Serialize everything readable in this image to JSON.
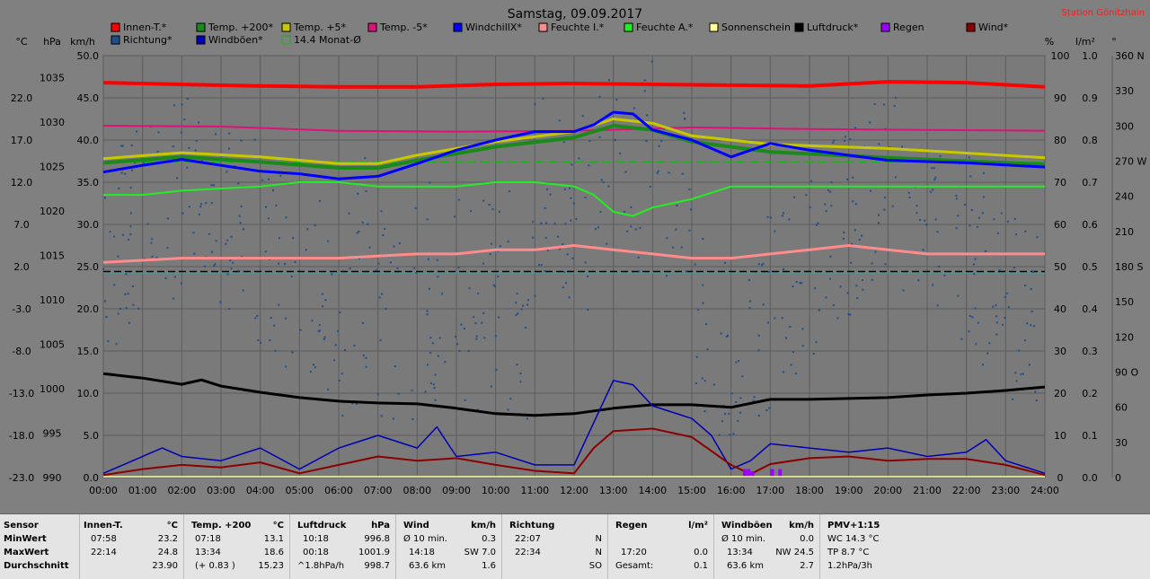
{
  "title": "Samstag, 09.09.2017",
  "station": "Station Gönitzhain",
  "colors": {
    "innen": "#ff0000",
    "temp200": "#1a8a1a",
    "temp5": "#c8c800",
    "tempm5": "#e0107a",
    "windchill": "#0000ff",
    "feuchteI": "#ff8c8c",
    "feuchteA": "#22ee22",
    "sonnenschein": "#ffff99",
    "luftdruck": "#000000",
    "regen": "#9b00ff",
    "wind": "#8b0000",
    "richtung": "#1f4e8c",
    "windboeen": "#0000b4",
    "monat": "#22aa22"
  },
  "legend": [
    {
      "label": "Innen-T.*",
      "color": "#ff0000"
    },
    {
      "label": "Temp. +200*",
      "color": "#1a8a1a"
    },
    {
      "label": "Temp. +5*",
      "color": "#c8c800"
    },
    {
      "label": "Temp. -5*",
      "color": "#e0107a"
    },
    {
      "label": "WindchillX*",
      "color": "#0000ff"
    },
    {
      "label": "Feuchte I.*",
      "color": "#ff8c8c"
    },
    {
      "label": "Feuchte A.*",
      "color": "#22ee22"
    },
    {
      "label": "Sonnenschein",
      "color": "#ffff99"
    },
    {
      "label": "Luftdruck*",
      "color": "#000000"
    },
    {
      "label": "Regen",
      "color": "#9b00ff"
    },
    {
      "label": "Wind*",
      "color": "#8b0000"
    },
    {
      "label": "Richtung*",
      "color": "#1f4e8c"
    },
    {
      "label": "Windböen*",
      "color": "#0000b4"
    },
    {
      "label": "14.4 Monat-Ø",
      "color": "#22aa22",
      "outline": true
    }
  ],
  "axis_units": {
    "c": "°C",
    "hpa": "hPa",
    "kmh": "km/h",
    "pct": "%",
    "lm2": "l/m²",
    "deg": "°"
  },
  "chart_data": {
    "type": "line",
    "title": "Samstag, 09.09.2017",
    "x_labels": [
      "00:00",
      "01:00",
      "02:00",
      "03:00",
      "04:00",
      "05:00",
      "06:00",
      "07:00",
      "08:00",
      "09:00",
      "10:00",
      "11:00",
      "12:00",
      "13:00",
      "14:00",
      "15:00",
      "16:00",
      "17:00",
      "18:00",
      "19:00",
      "20:00",
      "21:00",
      "22:00",
      "23:00",
      "24:00"
    ],
    "axes": {
      "temp_c": {
        "ticks": [
          "22.0",
          "17.0",
          "12.0",
          "7.0",
          "2.0",
          "-3.0",
          "-8.0",
          "-13.0",
          "-18.0",
          "-23.0"
        ],
        "ylim": [
          -23,
          27
        ]
      },
      "pressure_hpa": {
        "ticks": [
          "1035",
          "1030",
          "1025",
          "1020",
          "1015",
          "1010",
          "1005",
          "1000",
          "995",
          "990"
        ],
        "ylim": [
          990,
          1037.5
        ]
      },
      "wind_kmh": {
        "ticks": [
          "50.0",
          "45.0",
          "40.0",
          "35.0",
          "30.0",
          "25.0",
          "20.0",
          "15.0",
          "10.0",
          "5.0",
          "0.0"
        ],
        "ylim": [
          0,
          50
        ]
      },
      "humidity_pct": {
        "ticks": [
          "100",
          "90",
          "80",
          "70",
          "60",
          "50",
          "40",
          "30",
          "20",
          "10",
          "0"
        ],
        "ylim": [
          0,
          100
        ]
      },
      "rain_lm2": {
        "ticks": [
          "1.0",
          "0.9",
          "0.8",
          "0.7",
          "0.6",
          "0.5",
          "0.4",
          "0.3",
          "0.2",
          "0.1",
          "0.0"
        ],
        "ylim": [
          0,
          1
        ]
      },
      "direction_deg": {
        "ticks": [
          "360 N",
          "330",
          "300",
          "270 W",
          "240",
          "210",
          "180 S",
          "150",
          "120",
          "90 O",
          "60",
          "30",
          "0"
        ],
        "ylim": [
          0,
          360
        ]
      }
    },
    "series": [
      {
        "name": "Innen-T.*",
        "axis": "temp_c",
        "x": [
          0,
          2,
          4,
          6,
          8,
          10,
          12,
          14,
          16,
          18,
          20,
          22,
          24
        ],
        "y": [
          23.8,
          23.6,
          23.4,
          23.3,
          23.3,
          23.6,
          23.7,
          23.6,
          23.5,
          23.4,
          23.9,
          23.8,
          23.3
        ]
      },
      {
        "name": "Temp. -5*",
        "axis": "temp_c",
        "x": [
          0,
          3,
          6,
          9,
          12,
          15,
          18,
          21,
          24
        ],
        "y": [
          18.7,
          18.6,
          18.1,
          18.0,
          18.1,
          18.5,
          18.3,
          18.2,
          18.1
        ]
      },
      {
        "name": "Temp. +5*",
        "axis": "temp_c",
        "x": [
          0,
          2,
          4,
          6,
          7,
          8,
          10,
          12,
          13,
          14,
          15,
          17,
          20,
          24
        ],
        "y": [
          14.8,
          15.5,
          15.0,
          14.2,
          14.2,
          15.2,
          16.8,
          18.0,
          19.5,
          19.0,
          17.5,
          16.5,
          16.0,
          14.9
        ]
      },
      {
        "name": "Temp. +200*",
        "axis": "temp_c",
        "x": [
          0,
          2,
          4,
          6,
          7,
          8,
          10,
          12,
          13,
          14,
          15,
          17,
          20,
          24
        ],
        "y": [
          14.3,
          15.0,
          14.4,
          13.7,
          13.7,
          14.6,
          16.2,
          17.3,
          18.7,
          18.2,
          16.8,
          15.6,
          14.9,
          14.1
        ]
      },
      {
        "name": "WindchillX*",
        "axis": "temp_c",
        "x": [
          0,
          1,
          2,
          3,
          4,
          5,
          6,
          7,
          8,
          9,
          10,
          11,
          12,
          12.5,
          13,
          13.5,
          14,
          15,
          16,
          17,
          18,
          20,
          22,
          24
        ],
        "y": [
          13.2,
          14.0,
          14.7,
          14.0,
          13.3,
          13.0,
          12.4,
          12.7,
          14.2,
          15.8,
          17.0,
          18.0,
          18.0,
          18.8,
          20.3,
          20.1,
          18.2,
          17.0,
          15.0,
          16.6,
          15.8,
          14.6,
          14.3,
          13.8
        ]
      },
      {
        "name": "Feuchte A.*",
        "axis": "humidity_pct",
        "x": [
          0,
          1,
          2,
          4,
          5,
          6,
          7,
          9,
          10,
          11,
          12,
          12.5,
          13,
          13.5,
          14,
          15,
          16,
          17,
          18,
          21,
          24
        ],
        "y": [
          67,
          67,
          68,
          69,
          70,
          70,
          69,
          69,
          70,
          70,
          69,
          67,
          63,
          62,
          64,
          66,
          69,
          69,
          69,
          69,
          69
        ]
      },
      {
        "name": "Feuchte I.*",
        "axis": "humidity_pct",
        "x": [
          0,
          2,
          4,
          6,
          8,
          9,
          10,
          11,
          12,
          13,
          14,
          15,
          16,
          17,
          18,
          19,
          20,
          21,
          22,
          23,
          24
        ],
        "y": [
          51,
          52,
          52,
          52,
          53,
          53,
          54,
          54,
          55,
          54,
          53,
          52,
          52,
          53,
          54,
          55,
          54,
          53,
          53,
          53,
          53
        ]
      },
      {
        "name": "Luftdruck*",
        "axis": "pressure_hpa",
        "x": [
          0,
          1,
          2,
          2.5,
          3,
          4,
          5,
          6,
          7,
          8,
          9,
          10,
          11,
          12,
          13,
          14,
          15,
          16,
          17,
          18,
          19,
          20,
          21,
          22,
          23,
          24
        ],
        "y": [
          1001.7,
          1001.2,
          1000.5,
          1001.0,
          1000.3,
          999.6,
          999.0,
          998.6,
          998.4,
          998.3,
          997.8,
          997.2,
          997.0,
          997.2,
          997.8,
          998.2,
          998.2,
          997.9,
          998.8,
          998.8,
          998.9,
          999.0,
          999.3,
          999.5,
          999.8,
          1000.2
        ]
      },
      {
        "name": "Windböen*",
        "axis": "wind_kmh",
        "x": [
          0,
          1,
          1.5,
          2,
          3,
          4,
          5,
          6,
          7,
          8,
          8.5,
          9,
          10,
          11,
          12,
          12.5,
          13,
          13.5,
          14,
          15,
          15.5,
          16,
          16.5,
          17,
          18,
          19,
          20,
          21,
          22,
          22.5,
          23,
          24
        ],
        "y": [
          0.5,
          2.5,
          3.5,
          2.5,
          2.0,
          3.5,
          1.0,
          3.5,
          5.0,
          3.5,
          6.0,
          2.5,
          3.0,
          1.5,
          1.5,
          6.5,
          11.5,
          11.0,
          8.5,
          7.0,
          5.0,
          1.0,
          2.0,
          4.0,
          3.5,
          3.0,
          3.5,
          2.5,
          3.0,
          4.5,
          2.0,
          0.5
        ]
      },
      {
        "name": "Wind*",
        "axis": "wind_kmh",
        "x": [
          0,
          1,
          2,
          3,
          4,
          5,
          6,
          7,
          8,
          9,
          10,
          11,
          12,
          12.5,
          13,
          14,
          15,
          16,
          16.5,
          17,
          18,
          19,
          20,
          21,
          22,
          23,
          24
        ],
        "y": [
          0.3,
          1.0,
          1.5,
          1.2,
          1.8,
          0.5,
          1.5,
          2.5,
          2.0,
          2.3,
          1.5,
          0.8,
          0.5,
          3.5,
          5.5,
          5.8,
          4.8,
          1.5,
          0.4,
          1.6,
          2.3,
          2.5,
          2.0,
          2.2,
          2.2,
          1.5,
          0.3
        ]
      },
      {
        "name": "Monat-Ø",
        "axis": "temp_c",
        "value": 14.4
      }
    ],
    "hlines": [
      {
        "name": "50%",
        "axis": "humidity_pct",
        "value": 48.5
      }
    ]
  },
  "summary": {
    "sensor": {
      "title": "Sensor",
      "rows": [
        "MinWert",
        "MaxWert",
        "Durchschnitt"
      ]
    },
    "innen": {
      "title": "Innen-T.",
      "unit": "°C",
      "rows": [
        [
          "07:58",
          "23.2"
        ],
        [
          "22:14",
          "24.8"
        ],
        [
          "",
          "23.90"
        ]
      ]
    },
    "temp200": {
      "title": "Temp. +200",
      "unit": "°C",
      "rows": [
        [
          "07:18",
          "13.1"
        ],
        [
          "13:34",
          "18.6"
        ],
        [
          "(+ 0.83 )",
          "15.23"
        ]
      ]
    },
    "luftdruck": {
      "title": "Luftdruck",
      "unit": "hPa",
      "rows": [
        [
          "10:18",
          "996.8"
        ],
        [
          "00:18",
          "1001.9"
        ],
        [
          "^1.8hPa/h",
          "998.7"
        ]
      ]
    },
    "wind": {
      "title": "Wind",
      "unit": "km/h",
      "rows": [
        [
          "Ø 10 min.",
          "0.3"
        ],
        [
          "14:18",
          "SW 7.0"
        ],
        [
          "63.6 km",
          "1.6"
        ]
      ]
    },
    "richtung": {
      "title": "Richtung",
      "unit": "",
      "rows": [
        [
          "22:07",
          "N"
        ],
        [
          "22:34",
          "N"
        ],
        [
          "",
          "SO"
        ]
      ]
    },
    "regen": {
      "title": "Regen",
      "unit": "l/m²",
      "rows": [
        [
          "",
          ""
        ],
        [
          "17:20",
          "0.0"
        ],
        [
          "Gesamt:",
          "0.1"
        ]
      ]
    },
    "windboeen": {
      "title": "Windböen",
      "unit": "km/h",
      "rows": [
        [
          "Ø 10 min.",
          "0.0"
        ],
        [
          "13:34",
          "NW 24.5"
        ],
        [
          "63.6 km",
          "2.7"
        ]
      ]
    },
    "pmv": {
      "title": "PMV+1:15",
      "rows": [
        "WC 14.3 °C",
        "TP 8.7 °C",
        "1.2hPa/3h"
      ]
    }
  }
}
